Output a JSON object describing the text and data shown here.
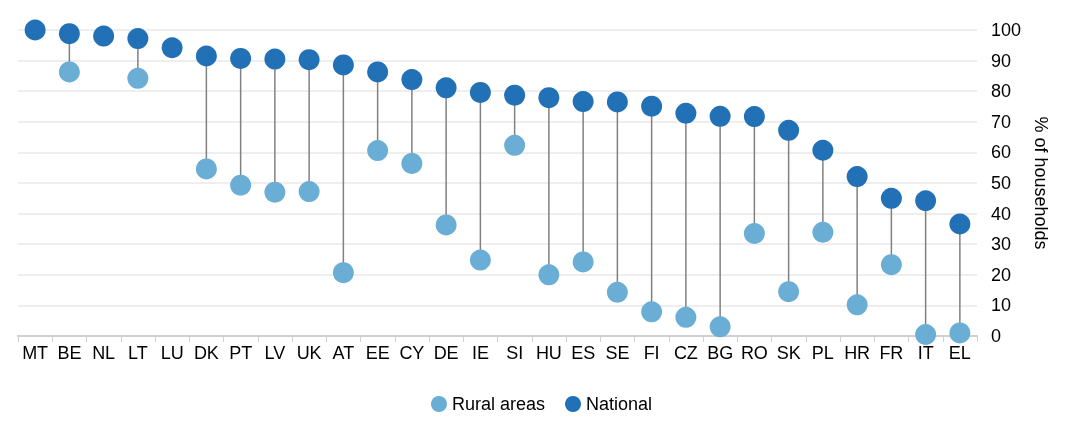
{
  "chart_data": {
    "type": "scatter",
    "ylabel": "% of households",
    "categories": [
      "MT",
      "BE",
      "NL",
      "LT",
      "LU",
      "DK",
      "PT",
      "LV",
      "UK",
      "AT",
      "EE",
      "CY",
      "DE",
      "IE",
      "SI",
      "HU",
      "ES",
      "SE",
      "FI",
      "CZ",
      "BG",
      "RO",
      "SK",
      "PL",
      "HR",
      "FR",
      "IT",
      "EL"
    ],
    "series": [
      {
        "name": "Rural areas",
        "color": "#6aaed6",
        "values": [
          null,
          86.3,
          null,
          84.2,
          null,
          54.6,
          49.3,
          47,
          47.2,
          20.7,
          60.6,
          56.4,
          36.3,
          24.8,
          62.3,
          20,
          24.2,
          14.3,
          7.9,
          6.1,
          3,
          33.5,
          14.5,
          33.9,
          10.2,
          23.3,
          0.5,
          1
        ]
      },
      {
        "name": "National",
        "color": "#2270b5",
        "values": [
          100,
          98.8,
          98,
          97.2,
          94.2,
          91.5,
          90.7,
          90.5,
          90.3,
          88.6,
          86.3,
          83.8,
          81.1,
          79.6,
          78.7,
          77.9,
          76.6,
          76.5,
          75.1,
          72.8,
          71.8,
          71.7,
          67.2,
          60.7,
          52.1,
          45,
          44.2,
          36.6
        ]
      }
    ],
    "ylim": [
      0,
      100
    ],
    "yticks": [
      0,
      10,
      20,
      30,
      40,
      50,
      60,
      70,
      80,
      90,
      100
    ],
    "grid": "y",
    "legend": "bottom",
    "marker": "circle"
  }
}
